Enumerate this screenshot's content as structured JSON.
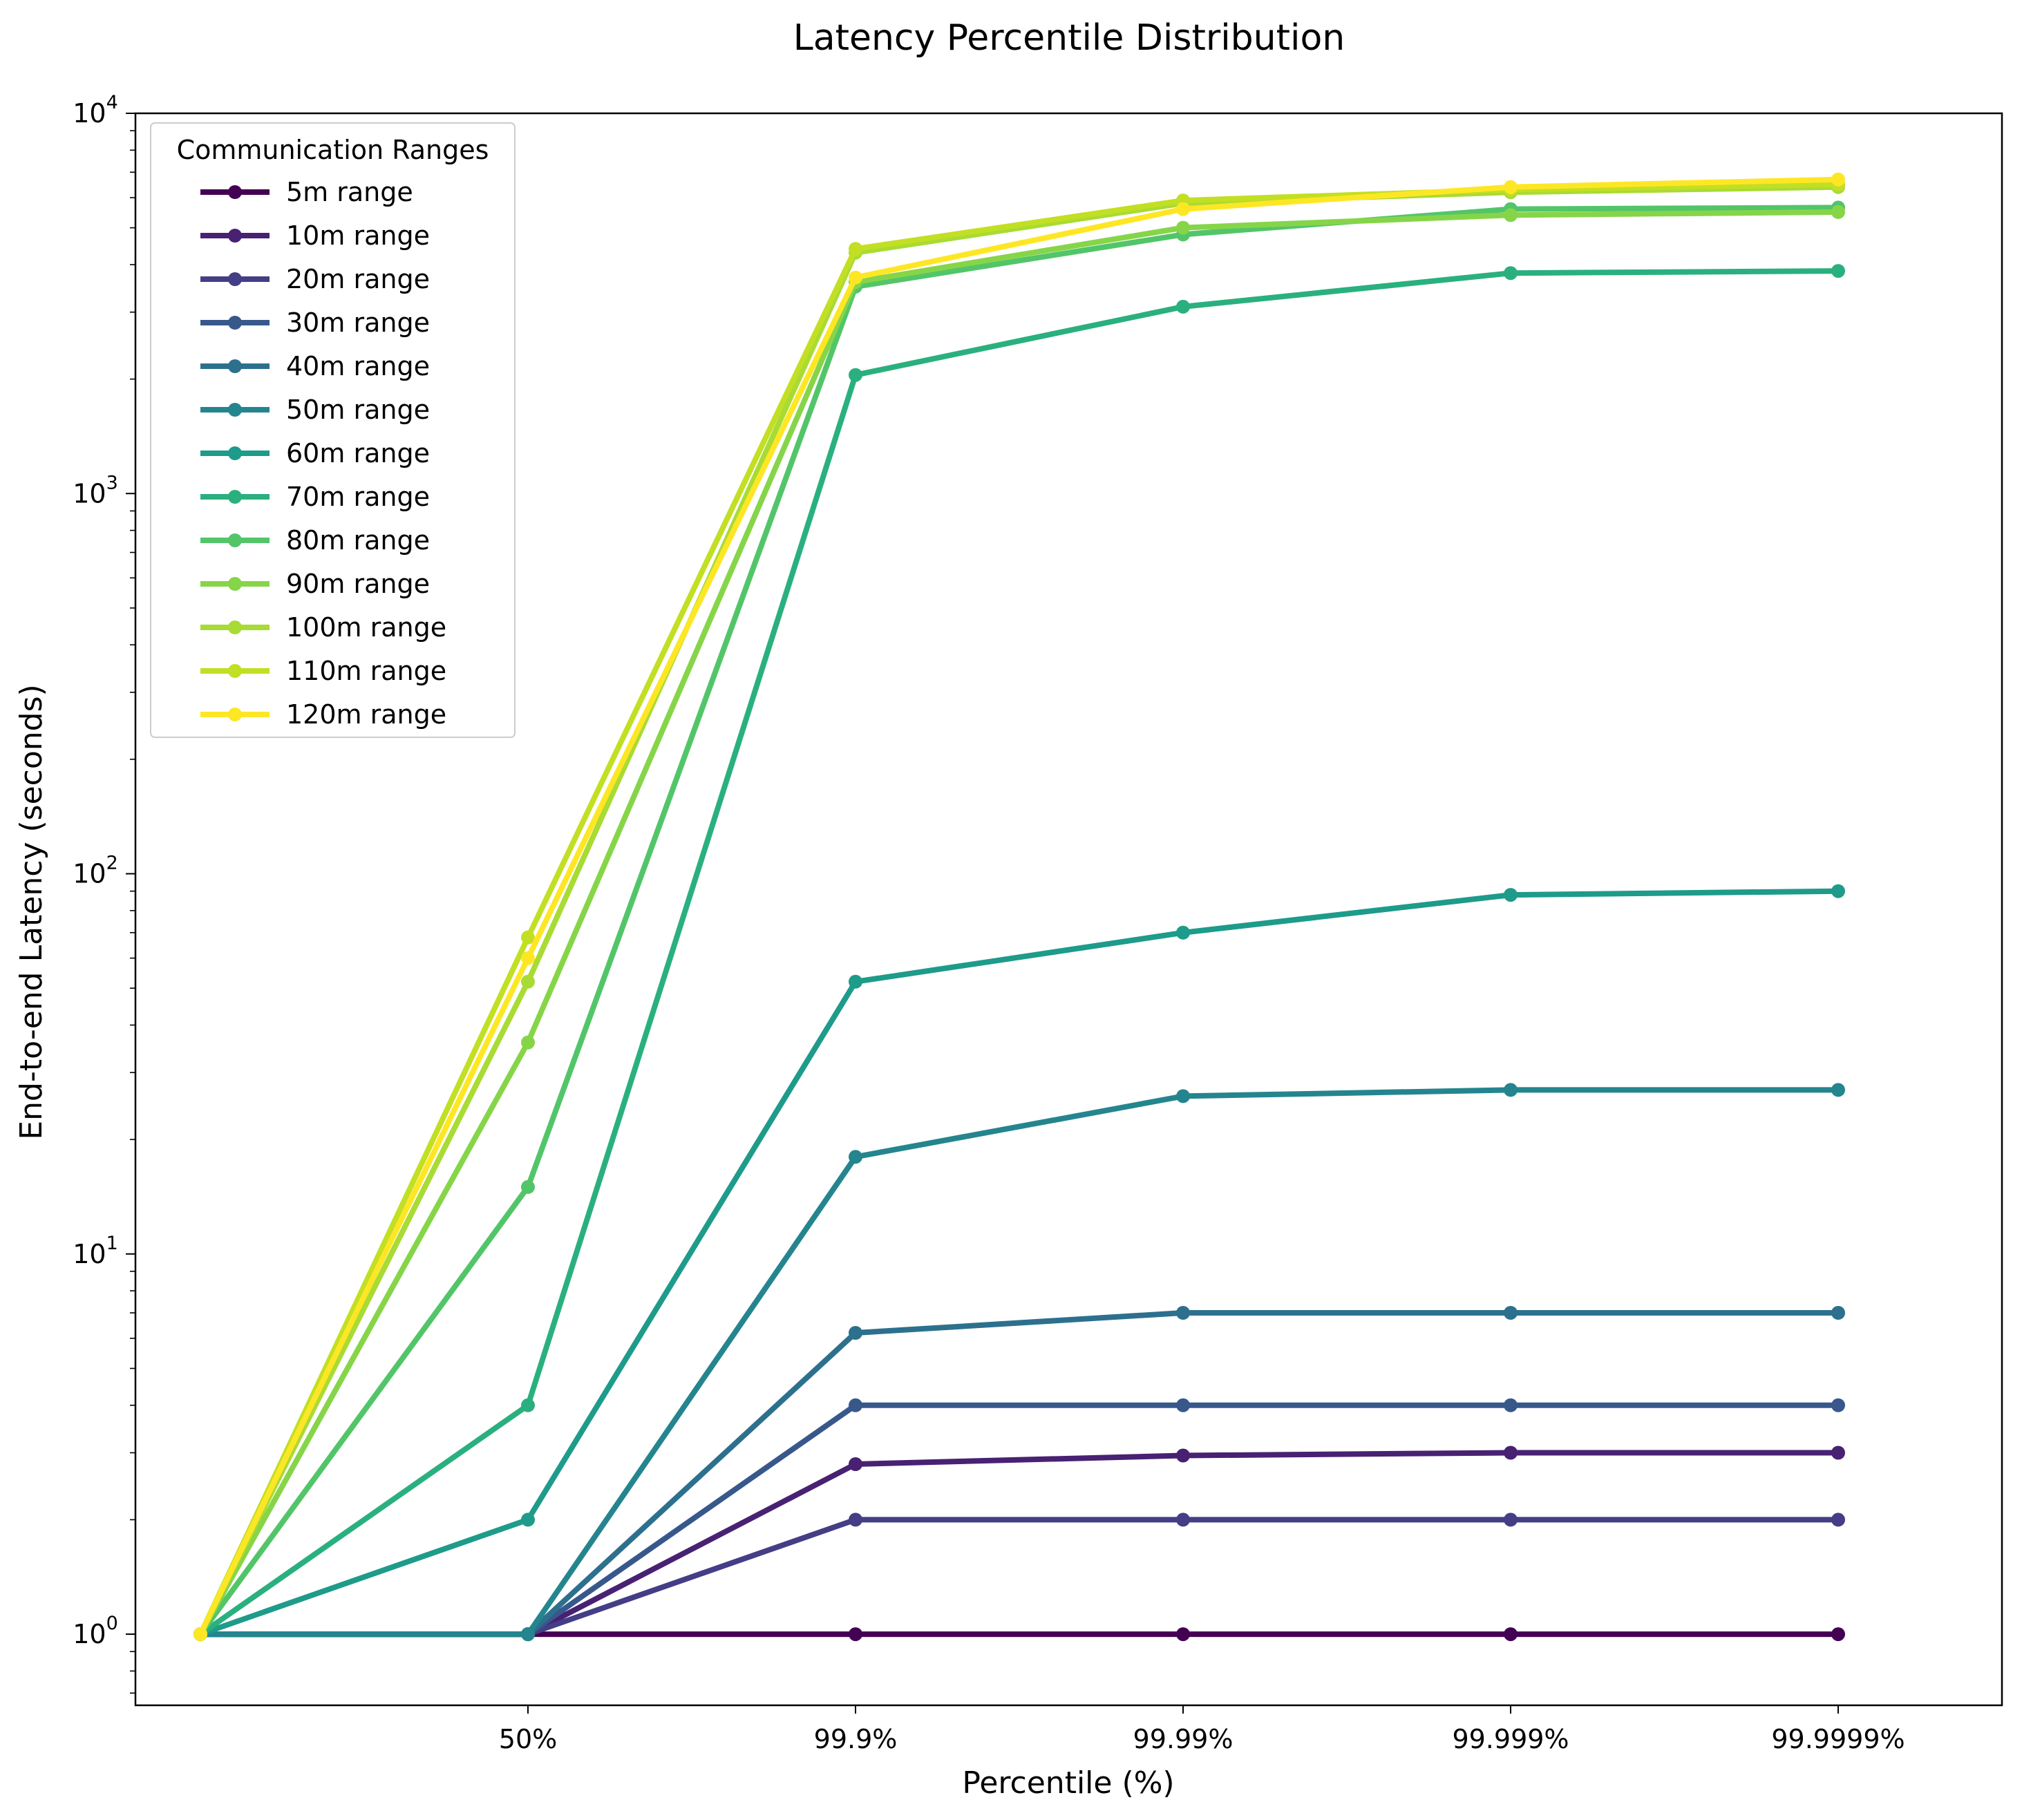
{
  "chart_data": {
    "type": "line",
    "title": "Latency Percentile Distribution",
    "xlabel": "Percentile (%)",
    "ylabel": "End-to-end Latency (seconds)",
    "yscale": "log",
    "ylim": [
      0.65,
      10000
    ],
    "grid": false,
    "legend_title": "Communication Ranges",
    "legend_position": "upper-left",
    "x_positions": [
      0,
      1,
      2,
      3,
      4,
      5
    ],
    "categories": [
      "",
      "50%",
      "99.9%",
      "99.99%",
      "99.999%",
      "99.9999%"
    ],
    "y_ticks": [
      {
        "value": 1,
        "base": "10",
        "exp": "0"
      },
      {
        "value": 10,
        "base": "10",
        "exp": "1"
      },
      {
        "value": 100,
        "base": "10",
        "exp": "2"
      },
      {
        "value": 1000,
        "base": "10",
        "exp": "3"
      },
      {
        "value": 10000,
        "base": "10",
        "exp": "4"
      }
    ],
    "series": [
      {
        "name": "5m range",
        "color": "#440154",
        "values": [
          1,
          1,
          1,
          1,
          1,
          1
        ]
      },
      {
        "name": "10m range",
        "color": "#482173",
        "values": [
          1,
          1,
          2.8,
          2.95,
          3,
          3
        ]
      },
      {
        "name": "20m range",
        "color": "#433e85",
        "values": [
          1,
          1,
          2,
          2,
          2,
          2
        ]
      },
      {
        "name": "30m range",
        "color": "#38588c",
        "values": [
          1,
          1,
          4,
          4,
          4,
          4
        ]
      },
      {
        "name": "40m range",
        "color": "#2d708e",
        "values": [
          1,
          1,
          6.2,
          7,
          7,
          7
        ]
      },
      {
        "name": "50m range",
        "color": "#25858e",
        "values": [
          1,
          1,
          18,
          26,
          27,
          27
        ]
      },
      {
        "name": "60m range",
        "color": "#1e9b8a",
        "values": [
          1,
          2,
          52,
          70,
          88,
          90
        ]
      },
      {
        "name": "70m range",
        "color": "#2ab07f",
        "values": [
          1,
          4,
          2050,
          3100,
          3800,
          3850
        ]
      },
      {
        "name": "80m range",
        "color": "#52c569",
        "values": [
          1,
          15,
          3500,
          4800,
          5600,
          5650
        ]
      },
      {
        "name": "90m range",
        "color": "#86d549",
        "values": [
          1,
          36,
          3600,
          5000,
          5400,
          5500
        ]
      },
      {
        "name": "100m range",
        "color": "#a8db34",
        "values": [
          1,
          52,
          4300,
          5800,
          6200,
          6400
        ]
      },
      {
        "name": "110m range",
        "color": "#c2df23",
        "values": [
          1,
          68,
          4400,
          5900,
          6300,
          6500
        ]
      },
      {
        "name": "120m range",
        "color": "#fde725",
        "values": [
          1,
          60,
          3700,
          5600,
          6400,
          6700
        ]
      }
    ]
  }
}
